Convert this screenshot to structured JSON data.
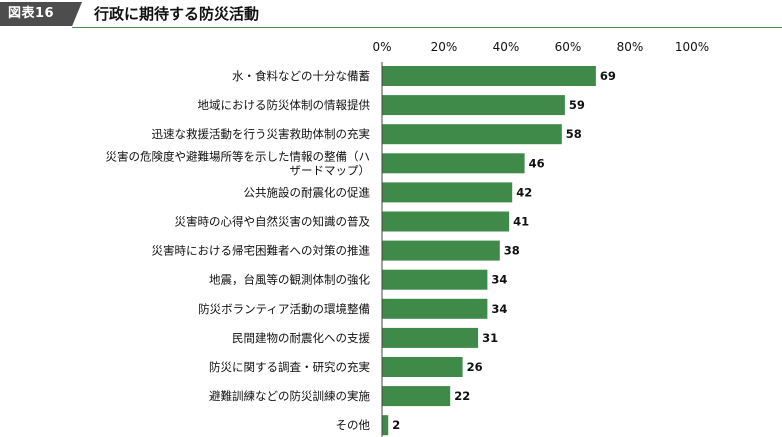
{
  "header": {
    "badge": "図表16",
    "title": "行政に期待する防災活動"
  },
  "colors": {
    "bar": "#3f8a49",
    "badge_bg": "#4d4d4d",
    "rule": "#4d8c4f"
  },
  "chart_data": {
    "type": "bar",
    "orientation": "horizontal",
    "title": "行政に期待する防災活動",
    "xlabel": "",
    "ylabel": "",
    "xlim": [
      0,
      100
    ],
    "ticks": [
      "0%",
      "20%",
      "40%",
      "60%",
      "80%",
      "100%"
    ],
    "grid": false,
    "categories": [
      [
        "水・食料などの十分な備蓄"
      ],
      [
        "地域における防災体制の情報提供"
      ],
      [
        "迅速な救援活動を行う災害救助体制の充実"
      ],
      [
        "災害の危険度や避難場所等を示した情報の整備（ハ",
        "ザードマップ）"
      ],
      [
        "公共施設の耐震化の促進"
      ],
      [
        "災害時の心得や自然災害の知識の普及"
      ],
      [
        "災害時における帰宅困難者への対策の推進"
      ],
      [
        "地震，台風等の観測体制の強化"
      ],
      [
        "防災ボランティア活動の環境整備"
      ],
      [
        "民間建物の耐震化への支援"
      ],
      [
        "防災に関する調査・研究の充実"
      ],
      [
        "避難訓練などの防災訓練の実施"
      ],
      [
        "その他"
      ]
    ],
    "values": [
      69,
      59,
      58,
      46,
      42,
      41,
      38,
      34,
      34,
      31,
      26,
      22,
      2
    ]
  }
}
